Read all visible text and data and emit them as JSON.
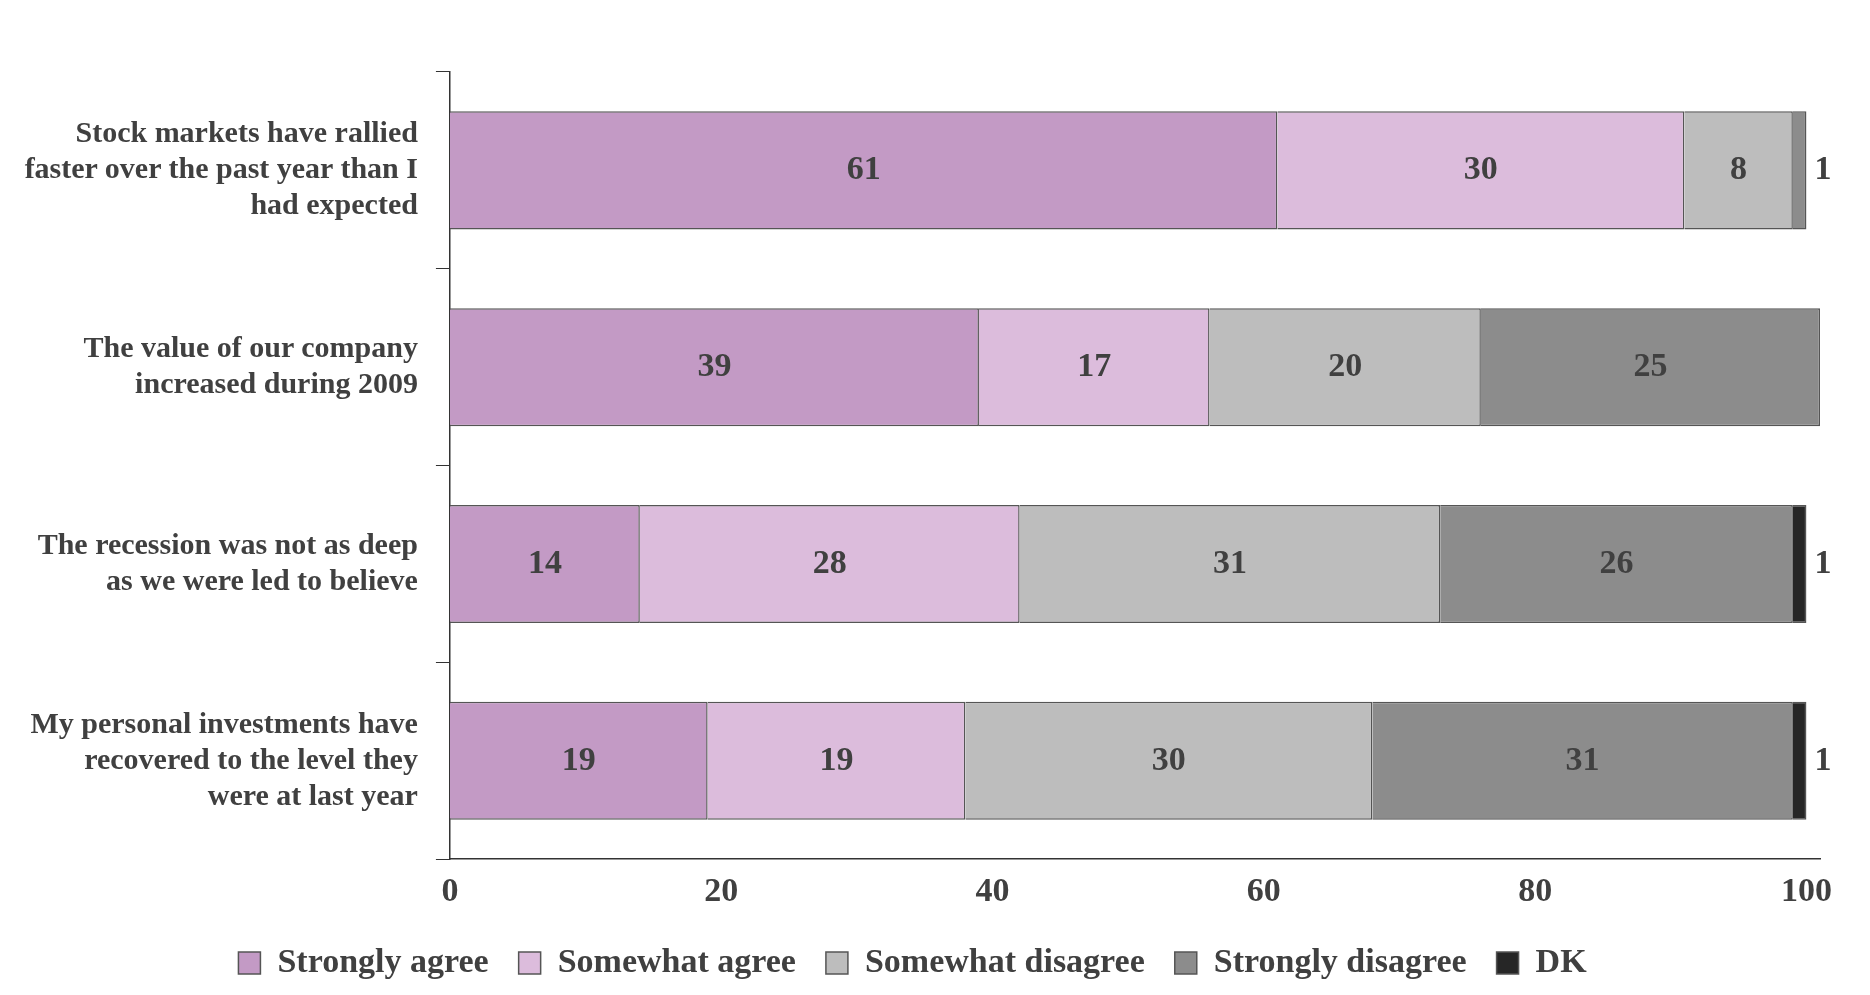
{
  "chart_data": {
    "type": "bar",
    "orientation": "horizontal",
    "stacked": true,
    "categories": [
      "Stock markets have rallied faster over the past year than I had expected",
      "The value of our company increased during 2009",
      "The recession was not as deep as we were led to believe",
      "My personal investments have recovered to the level they were at last year"
    ],
    "series": [
      {
        "name": "Strongly agree",
        "color": "#c39ac5",
        "values": [
          61,
          39,
          14,
          19
        ]
      },
      {
        "name": "Somewhat agree",
        "color": "#dcbcdc",
        "values": [
          30,
          17,
          28,
          19
        ]
      },
      {
        "name": "Somewhat disagree",
        "color": "#bdbdbd",
        "values": [
          8,
          20,
          31,
          30
        ]
      },
      {
        "name": "Strongly disagree",
        "color": "#8c8c8c",
        "values": [
          1,
          25,
          26,
          31
        ]
      },
      {
        "name": "DK",
        "color": "#262626",
        "values": [
          null,
          null,
          1,
          1
        ]
      }
    ],
    "xlim": [
      0,
      101
    ],
    "xticks": [
      0,
      20,
      40,
      60,
      80,
      100
    ],
    "grid": false,
    "legend": "bottom",
    "data_labels": true
  }
}
